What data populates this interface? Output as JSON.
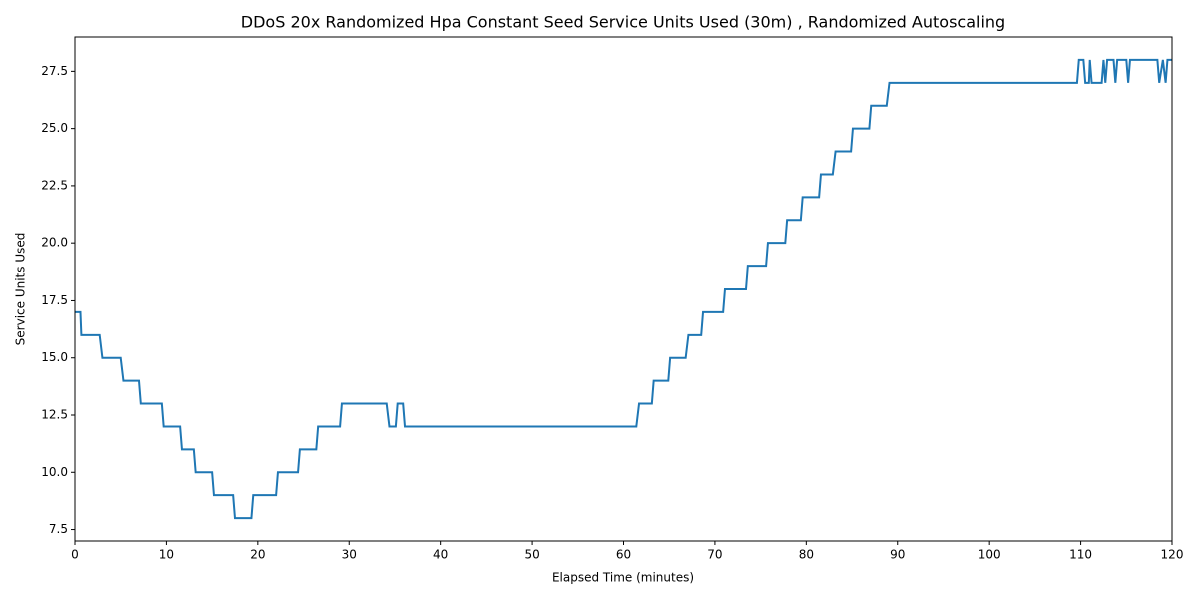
{
  "chart_data": {
    "type": "line",
    "title": "DDoS 20x Randomized Hpa Constant Seed Service Units Used (30m) , Randomized Autoscaling",
    "xlabel": "Elapsed Time (minutes)",
    "ylabel": "Service Units Used",
    "x": [
      0,
      0.6,
      0.7,
      2.7,
      3.0,
      5.0,
      5.3,
      7.0,
      7.2,
      9.5,
      9.7,
      11.5,
      11.7,
      13.0,
      13.2,
      15.0,
      15.2,
      17.3,
      17.5,
      19.3,
      19.5,
      22.0,
      22.2,
      24.4,
      24.6,
      26.4,
      26.6,
      29.0,
      29.2,
      34.1,
      34.4,
      35.1,
      35.3,
      35.9,
      36.1,
      61.4,
      61.7,
      63.1,
      63.3,
      64.9,
      65.1,
      66.8,
      67.1,
      68.5,
      68.7,
      70.9,
      71.1,
      73.4,
      73.6,
      75.6,
      75.8,
      77.7,
      77.9,
      79.4,
      79.6,
      81.4,
      81.6,
      82.9,
      83.2,
      84.9,
      85.1,
      86.9,
      87.1,
      88.8,
      89.1,
      109.6,
      109.8,
      110.3,
      110.5,
      110.9,
      111.0,
      111.2,
      112.3,
      112.5,
      112.7,
      112.9,
      113.6,
      113.8,
      114.0,
      115.0,
      115.2,
      115.4,
      118.4,
      118.6,
      119.0,
      119.3,
      119.5,
      120
    ],
    "series": [
      {
        "name": "Service Units Used",
        "color": "#1f77b4",
        "values": [
          17,
          17,
          16,
          16,
          15,
          15,
          14,
          14,
          13,
          13,
          12,
          12,
          11,
          11,
          10,
          10,
          9,
          9,
          8,
          8,
          9,
          9,
          10,
          10,
          11,
          11,
          12,
          12,
          13,
          13,
          12,
          12,
          13,
          13,
          12,
          12,
          13,
          13,
          14,
          14,
          15,
          15,
          16,
          16,
          17,
          17,
          18,
          18,
          19,
          19,
          20,
          20,
          21,
          21,
          22,
          22,
          23,
          23,
          24,
          24,
          25,
          25,
          26,
          26,
          27,
          27,
          28,
          28,
          27,
          27,
          28,
          27,
          27,
          28,
          27,
          28,
          28,
          27,
          28,
          28,
          27,
          28,
          28,
          27,
          28,
          27,
          28,
          28
        ]
      }
    ],
    "xlim": [
      0,
      120
    ],
    "ylim": [
      7,
      29
    ],
    "xticks": [
      0,
      10,
      20,
      30,
      40,
      50,
      60,
      70,
      80,
      90,
      100,
      110,
      120
    ],
    "yticks": [
      7.5,
      {
        "value": 10,
        "label": "10.0"
      },
      12.5,
      {
        "value": 15,
        "label": "15.0"
      },
      17.5,
      {
        "value": 20,
        "label": "20.0"
      },
      22.5,
      {
        "value": 25,
        "label": "25.0"
      },
      27.5
    ]
  }
}
